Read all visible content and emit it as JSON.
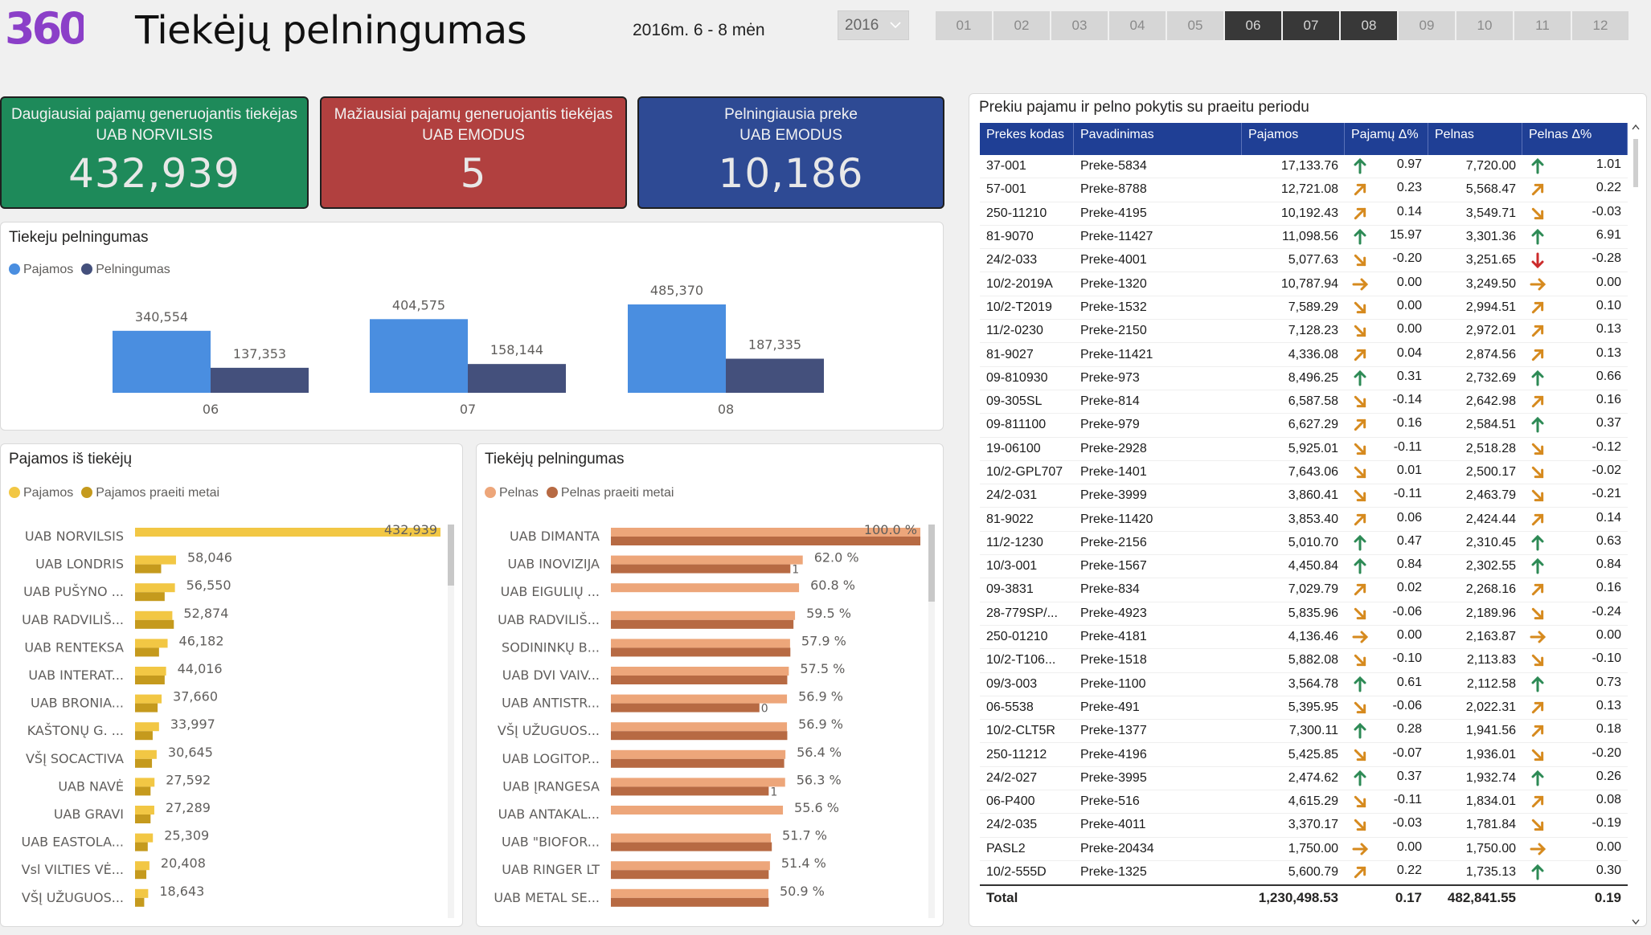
{
  "header": {
    "title": "Tiekėjų pelningumas",
    "period": "2016m. 6 - 8 mėn",
    "year": "2016",
    "months": [
      "01",
      "02",
      "03",
      "04",
      "05",
      "06",
      "07",
      "08",
      "09",
      "10",
      "11",
      "12"
    ],
    "active_months": [
      "06",
      "07",
      "08"
    ]
  },
  "logo": {
    "text": "360",
    "color": "#8b3fc8"
  },
  "kpis": [
    {
      "label": "Daugiausiai pajamų generuojantis tiekėjas",
      "supplier": "UAB NORVILSIS",
      "value": "432,939",
      "color": "#1e8a5a"
    },
    {
      "label": "Mažiausiai pajamų generuojantis tiekėjas",
      "supplier": "UAB EMODUS",
      "value": "5",
      "color": "#b1403f"
    },
    {
      "label": "Pelningiausia preke",
      "supplier": "UAB EMODUS",
      "value": "10,186",
      "color": "#2e4a94"
    }
  ],
  "chart_data": [
    {
      "type": "bar",
      "title": "Tiekeju pelningumas",
      "categories": [
        "06",
        "07",
        "08"
      ],
      "series": [
        {
          "name": "Pajamos",
          "values": [
            340554,
            404575,
            485370
          ],
          "labels": [
            "340,554",
            "404,575",
            "485,370"
          ],
          "color": "#4a8ee0"
        },
        {
          "name": "Pelningumas",
          "values": [
            137353,
            158144,
            187335
          ],
          "labels": [
            "137,353",
            "158,144",
            "187,335"
          ],
          "color": "#44507c"
        }
      ]
    },
    {
      "type": "bar",
      "orientation": "horizontal",
      "title": "Pajamos iš tiekėjų",
      "categories": [
        "UAB NORVILSIS",
        "UAB LONDRIS",
        "UAB PUŠYNO ...",
        "UAB RADVILIŠ...",
        "UAB RENTEKSA",
        "UAB INTERAT...",
        "UAB BRONIA...",
        "KAŠTONŲ G. ...",
        "VŠĮ SOCACTIVA",
        "UAB NAVĖ",
        "UAB GRAVI",
        "UAB EASTOLA...",
        "Vsl VILTIES VĖ...",
        "VŠĮ UŽUGUOS..."
      ],
      "series": [
        {
          "name": "Pajamos",
          "values": [
            432939,
            58046,
            56550,
            52874,
            46182,
            44016,
            37660,
            33997,
            30645,
            27592,
            27289,
            25309,
            20408,
            18643
          ],
          "labels": [
            "432,939",
            "58,046",
            "56,550",
            "52,874",
            "46,182",
            "44,016",
            "37,660",
            "33,997",
            "30,645",
            "27,592",
            "27,289",
            "25,309",
            "20,408",
            "18,643"
          ],
          "color": "#f2c744"
        },
        {
          "name": "Pajamos praeiti metai",
          "values": [
            0,
            37000,
            42000,
            55000,
            34000,
            42000,
            32000,
            25000,
            24000,
            22000,
            22000,
            18000,
            16000,
            13000
          ],
          "color": "#c59a1d"
        }
      ]
    },
    {
      "type": "bar",
      "orientation": "horizontal",
      "title": "Tiekėjų pelningumas",
      "categories": [
        "UAB DIMANTA",
        "UAB INOVIZIJA",
        "UAB EIGULIŲ ...",
        "UAB RADVILIŠ...",
        "SODININKŲ B...",
        "UAB DVI VAIV...",
        "UAB ANTISTR...",
        "VŠĮ UŽUGUOS...",
        "UAB LOGITOP...",
        "UAB ĮRANGESA",
        "UAB ANTAKAL...",
        "UAB \"BIOFOR...",
        "UAB RINGER LT",
        "UAB METAL SE..."
      ],
      "series": [
        {
          "name": "Pelnas",
          "values": [
            100.0,
            62.0,
            60.8,
            59.5,
            57.9,
            57.5,
            56.9,
            56.9,
            56.4,
            56.3,
            55.6,
            51.7,
            51.4,
            50.9
          ],
          "labels": [
            "100.0 %",
            "62.0 %",
            "60.8 %",
            "59.5 %",
            "57.9 %",
            "57.5 %",
            "56.9 %",
            "56.9 %",
            "56.4 %",
            "56.3 %",
            "55.6 %",
            "51.7 %",
            "51.4 %",
            "50.9 %"
          ],
          "color": "#eda67a"
        },
        {
          "name": "Pelnas praeiti metai",
          "values": [
            100,
            58,
            0,
            59,
            58,
            57,
            48,
            57,
            56,
            51,
            0,
            52,
            51,
            51
          ],
          "labels": [
            "",
            "1",
            "",
            "",
            "",
            "",
            "0",
            "",
            "",
            "1",
            "",
            "",
            "",
            ""
          ],
          "color": "#b76a43"
        }
      ]
    }
  ],
  "table": {
    "title": "Prekiu pajamu ir pelno pokytis su praeitu periodu",
    "columns": [
      "Prekes kodas",
      "Pavadinimas",
      "Pajamos",
      "Pajamų Δ%",
      "Pelnas",
      "Pelnas Δ%"
    ],
    "rows": [
      [
        "37-001",
        "Preke-5834",
        "17,133.76",
        "up",
        "0.97",
        "7,720.00",
        "up",
        "1.01"
      ],
      [
        "57-001",
        "Preke-8788",
        "12,721.08",
        "ne",
        "0.23",
        "5,568.47",
        "ne",
        "0.22"
      ],
      [
        "250-11210",
        "Preke-4195",
        "10,192.43",
        "ne",
        "0.14",
        "3,549.71",
        "se",
        "-0.03"
      ],
      [
        "81-9070",
        "Preke-11427",
        "11,098.56",
        "up",
        "15.97",
        "3,301.36",
        "up",
        "6.91"
      ],
      [
        "24/2-033",
        "Preke-4001",
        "5,077.63",
        "se",
        "-0.20",
        "3,251.65",
        "down",
        "-0.28"
      ],
      [
        "10/2-2019A",
        "Preke-1320",
        "10,787.94",
        "right",
        "0.00",
        "3,249.50",
        "right",
        "0.00"
      ],
      [
        "10/2-T2019",
        "Preke-1532",
        "7,589.29",
        "se",
        "0.00",
        "2,994.51",
        "ne",
        "0.10"
      ],
      [
        "11/2-0230",
        "Preke-2150",
        "7,128.23",
        "se",
        "0.00",
        "2,972.01",
        "ne",
        "0.13"
      ],
      [
        "81-9027",
        "Preke-11421",
        "4,336.08",
        "ne",
        "0.04",
        "2,874.56",
        "ne",
        "0.13"
      ],
      [
        "09-810930",
        "Preke-973",
        "8,496.25",
        "up",
        "0.31",
        "2,732.69",
        "up",
        "0.66"
      ],
      [
        "09-305SL",
        "Preke-814",
        "6,587.58",
        "se",
        "-0.14",
        "2,642.98",
        "ne",
        "0.16"
      ],
      [
        "09-811100",
        "Preke-979",
        "6,627.29",
        "ne",
        "0.16",
        "2,584.51",
        "up",
        "0.37"
      ],
      [
        "19-06100",
        "Preke-2928",
        "5,925.01",
        "se",
        "-0.11",
        "2,518.28",
        "se",
        "-0.12"
      ],
      [
        "10/2-GPL707",
        "Preke-1401",
        "7,643.06",
        "se",
        "0.01",
        "2,500.17",
        "se",
        "-0.02"
      ],
      [
        "24/2-031",
        "Preke-3999",
        "3,860.41",
        "se",
        "-0.11",
        "2,463.79",
        "se",
        "-0.21"
      ],
      [
        "81-9022",
        "Preke-11420",
        "3,853.40",
        "ne",
        "0.06",
        "2,424.44",
        "ne",
        "0.14"
      ],
      [
        "11/2-1230",
        "Preke-2156",
        "5,010.70",
        "up",
        "0.47",
        "2,310.45",
        "up",
        "0.63"
      ],
      [
        "10/3-001",
        "Preke-1567",
        "4,450.84",
        "up",
        "0.84",
        "2,302.55",
        "up",
        "0.84"
      ],
      [
        "09-3831",
        "Preke-834",
        "7,029.79",
        "ne",
        "0.02",
        "2,268.16",
        "ne",
        "0.16"
      ],
      [
        "28-779SP/...",
        "Preke-4923",
        "5,835.96",
        "se",
        "-0.06",
        "2,189.96",
        "se",
        "-0.24"
      ],
      [
        "250-01210",
        "Preke-4181",
        "4,136.46",
        "right",
        "0.00",
        "2,163.87",
        "right",
        "0.00"
      ],
      [
        "10/2-T106...",
        "Preke-1518",
        "5,882.08",
        "se",
        "-0.10",
        "2,113.83",
        "se",
        "-0.10"
      ],
      [
        "09/3-003",
        "Preke-1100",
        "3,564.78",
        "up",
        "0.61",
        "2,112.58",
        "up",
        "0.73"
      ],
      [
        "06-5538",
        "Preke-491",
        "5,395.95",
        "se",
        "-0.06",
        "2,022.31",
        "ne",
        "0.13"
      ],
      [
        "10/2-CLT5R",
        "Preke-1377",
        "7,300.11",
        "up",
        "0.28",
        "1,941.56",
        "ne",
        "0.18"
      ],
      [
        "250-11212",
        "Preke-4196",
        "5,425.85",
        "se",
        "-0.07",
        "1,936.01",
        "se",
        "-0.20"
      ],
      [
        "24/2-027",
        "Preke-3995",
        "2,474.62",
        "up",
        "0.37",
        "1,932.74",
        "up",
        "0.26"
      ],
      [
        "06-P400",
        "Preke-516",
        "4,615.29",
        "se",
        "-0.11",
        "1,834.01",
        "ne",
        "0.08"
      ],
      [
        "24/2-035",
        "Preke-4011",
        "3,370.17",
        "se",
        "-0.03",
        "1,781.84",
        "se",
        "-0.19"
      ],
      [
        "PASL2",
        "Preke-20434",
        "1,750.00",
        "right",
        "0.00",
        "1,750.00",
        "right",
        "0.00"
      ],
      [
        "10/2-555D",
        "Preke-1325",
        "5,600.79",
        "ne",
        "0.22",
        "1,735.13",
        "up",
        "0.30"
      ]
    ],
    "total": {
      "label": "Total",
      "pajamos": "1,230,498.53",
      "pajamu_delta": "0.17",
      "pelnas": "482,841.55",
      "pelnas_delta": "0.19"
    }
  }
}
